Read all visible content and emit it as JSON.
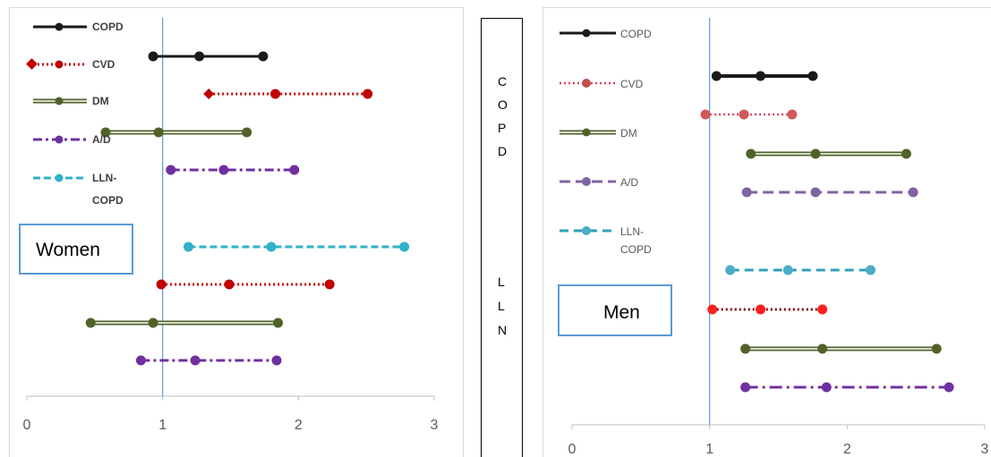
{
  "colors": {
    "COPD": "#1a1a1a",
    "CVD_w": "#c00000",
    "CVD_m": "#e04060",
    "DM": "#4f6228",
    "AD": "#7030a0",
    "AD_m": "#8064a2",
    "LLN": "#31b0c8",
    "ref_line": "#5b9bd5",
    "box_border": "#5b9bd5"
  },
  "legend_labels": {
    "copd": "COPD",
    "cvd": "CVD",
    "dm": "DM",
    "ad": "A/D",
    "lln1": "LLN-",
    "lln2": "COPD"
  },
  "side_letters_top": [
    "C",
    "O",
    "P",
    "D"
  ],
  "side_letters_bottom": [
    "L",
    "L",
    "N"
  ],
  "chart_data": [
    {
      "type": "forest",
      "title": "Women",
      "xlim": [
        0,
        3
      ],
      "xticks": [
        "0",
        "1",
        "2",
        "3"
      ],
      "reference_line": 1,
      "series": [
        {
          "name": "COPD",
          "est": 1.27,
          "lo": 0.93,
          "hi": 1.74
        },
        {
          "name": "CVD",
          "est": 1.83,
          "lo": 1.34,
          "hi": 2.51
        },
        {
          "name": "DM",
          "est": 0.97,
          "lo": 0.58,
          "hi": 1.62
        },
        {
          "name": "A/D",
          "est": 1.45,
          "lo": 1.06,
          "hi": 1.97
        },
        {
          "name": "LLN-COPD",
          "est": 1.8,
          "lo": 1.19,
          "hi": 2.78
        },
        {
          "name": "CVD",
          "est": 1.49,
          "lo": 0.99,
          "hi": 2.23
        },
        {
          "name": "DM",
          "est": 0.93,
          "lo": 0.47,
          "hi": 1.85
        },
        {
          "name": "A/D",
          "est": 1.24,
          "lo": 0.84,
          "hi": 1.84
        }
      ]
    },
    {
      "type": "forest",
      "title": "Men",
      "xlim": [
        0,
        3
      ],
      "xticks": [
        "0",
        "1",
        "2",
        "3"
      ],
      "reference_line": 1,
      "series": [
        {
          "name": "COPD",
          "est": 1.37,
          "lo": 1.05,
          "hi": 1.75
        },
        {
          "name": "CVD",
          "est": 1.25,
          "lo": 0.97,
          "hi": 1.6
        },
        {
          "name": "DM",
          "est": 1.77,
          "lo": 1.3,
          "hi": 2.43
        },
        {
          "name": "A/D",
          "est": 1.77,
          "lo": 1.27,
          "hi": 2.48
        },
        {
          "name": "LLN-COPD",
          "est": 1.57,
          "lo": 1.15,
          "hi": 2.17
        },
        {
          "name": "CVD",
          "est": 1.37,
          "lo": 1.02,
          "hi": 1.82
        },
        {
          "name": "DM",
          "est": 1.82,
          "lo": 1.26,
          "hi": 2.65
        },
        {
          "name": "A/D",
          "est": 1.85,
          "lo": 1.26,
          "hi": 2.74
        }
      ]
    }
  ]
}
